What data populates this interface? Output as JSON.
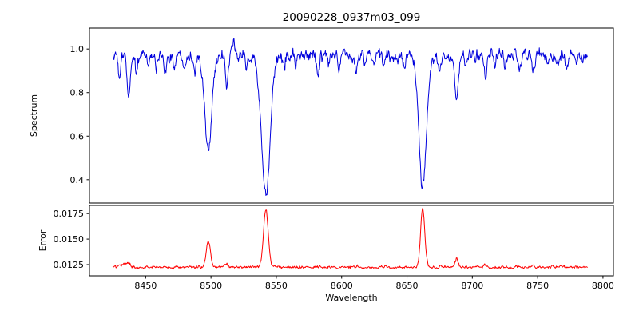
{
  "title": "20090228_0937m03_099",
  "axes": {
    "xlabel": "Wavelength",
    "ylabel_top": "Spectrum",
    "ylabel_bottom": "Error"
  },
  "chart_data": [
    {
      "type": "line",
      "name": "spectrum",
      "title": "20090228_0937m03_099",
      "ylabel": "Spectrum",
      "color": "#0000dd",
      "legend": "none",
      "grid": false,
      "xlim": [
        8407,
        8808
      ],
      "ylim": [
        0.293,
        1.096
      ],
      "yticks": [
        "0.4",
        "0.6",
        "0.8",
        "1.0"
      ],
      "x_data_range": [
        8425,
        8788
      ],
      "continuum": 0.97,
      "noise_sigma": 0.014,
      "key_absorption_minima": [
        {
          "wavelength": 8498,
          "flux": 0.54
        },
        {
          "wavelength": 8542,
          "flux": 0.33
        },
        {
          "wavelength": 8662,
          "flux": 0.36
        },
        {
          "wavelength": 8688,
          "flux": 0.77
        }
      ],
      "absorption_lines": {
        "fields": [
          "center_wavelength",
          "depth",
          "sigma"
        ],
        "values": [
          [
            8430,
            0.1,
            1.0
          ],
          [
            8437,
            0.19,
            1.2
          ],
          [
            8443,
            0.08,
            0.9
          ],
          [
            8452,
            0.05,
            0.8
          ],
          [
            8458,
            0.05,
            0.8
          ],
          [
            8465,
            0.09,
            1.0
          ],
          [
            8472,
            0.06,
            0.8
          ],
          [
            8480,
            0.04,
            0.8
          ],
          [
            8488,
            0.07,
            0.9
          ],
          [
            8498,
            0.43,
            2.6
          ],
          [
            8505,
            0.04,
            0.8
          ],
          [
            8512,
            0.15,
            1.1
          ],
          [
            8517,
            -0.07,
            1.0
          ],
          [
            8527,
            0.05,
            0.8
          ],
          [
            8542,
            0.64,
            3.4
          ],
          [
            8556,
            0.05,
            0.8
          ],
          [
            8565,
            0.03,
            0.8
          ],
          [
            8574,
            0.03,
            0.8
          ],
          [
            8582,
            0.08,
            1.0
          ],
          [
            8590,
            0.04,
            0.8
          ],
          [
            8598,
            0.06,
            0.9
          ],
          [
            8611,
            0.08,
            1.0
          ],
          [
            8618,
            0.04,
            0.8
          ],
          [
            8625,
            0.03,
            0.8
          ],
          [
            8632,
            0.04,
            0.8
          ],
          [
            8640,
            0.03,
            0.8
          ],
          [
            8648,
            0.05,
            0.9
          ],
          [
            8662,
            0.61,
            2.9
          ],
          [
            8675,
            0.07,
            0.9
          ],
          [
            8688,
            0.2,
            1.4
          ],
          [
            8695,
            0.04,
            0.8
          ],
          [
            8702,
            0.03,
            0.8
          ],
          [
            8710,
            0.09,
            1.0
          ],
          [
            8717,
            0.05,
            0.8
          ],
          [
            8725,
            0.04,
            0.8
          ],
          [
            8736,
            0.07,
            0.9
          ],
          [
            8747,
            0.06,
            0.9
          ],
          [
            8758,
            0.04,
            0.8
          ],
          [
            8765,
            0.03,
            0.8
          ],
          [
            8772,
            0.07,
            0.9
          ],
          [
            8780,
            0.04,
            0.8
          ]
        ]
      }
    },
    {
      "type": "line",
      "name": "error",
      "ylabel": "Error",
      "xlabel": "Wavelength",
      "color": "#ff0000",
      "legend": "none",
      "grid": false,
      "xlim": [
        8407,
        8808
      ],
      "ylim": [
        0.0114,
        0.0183
      ],
      "yticks": [
        "0.0125",
        "0.0150",
        "0.0175"
      ],
      "xticks": [
        "8450",
        "8500",
        "8550",
        "8600",
        "8650",
        "8700",
        "8750",
        "8800"
      ],
      "x_data_range": [
        8425,
        8788
      ],
      "baseline": 0.01225,
      "noise_sigma": 7e-05,
      "key_error_peaks": [
        {
          "wavelength": 8498,
          "error": 0.0148
        },
        {
          "wavelength": 8542,
          "error": 0.0178
        },
        {
          "wavelength": 8662,
          "error": 0.018
        }
      ],
      "peaks": {
        "fields": [
          "center_wavelength",
          "height",
          "sigma"
        ],
        "values": [
          [
            8433,
            0.0003,
            2.0
          ],
          [
            8437,
            0.0004,
            1.0
          ],
          [
            8498,
            0.0026,
            1.6
          ],
          [
            8512,
            0.0004,
            1.0
          ],
          [
            8542,
            0.0056,
            1.8
          ],
          [
            8662,
            0.0058,
            1.6
          ],
          [
            8688,
            0.0009,
            1.1
          ],
          [
            8710,
            0.0003,
            0.9
          ],
          [
            8736,
            0.0002,
            0.9
          ],
          [
            8747,
            0.0002,
            0.9
          ]
        ]
      }
    }
  ]
}
